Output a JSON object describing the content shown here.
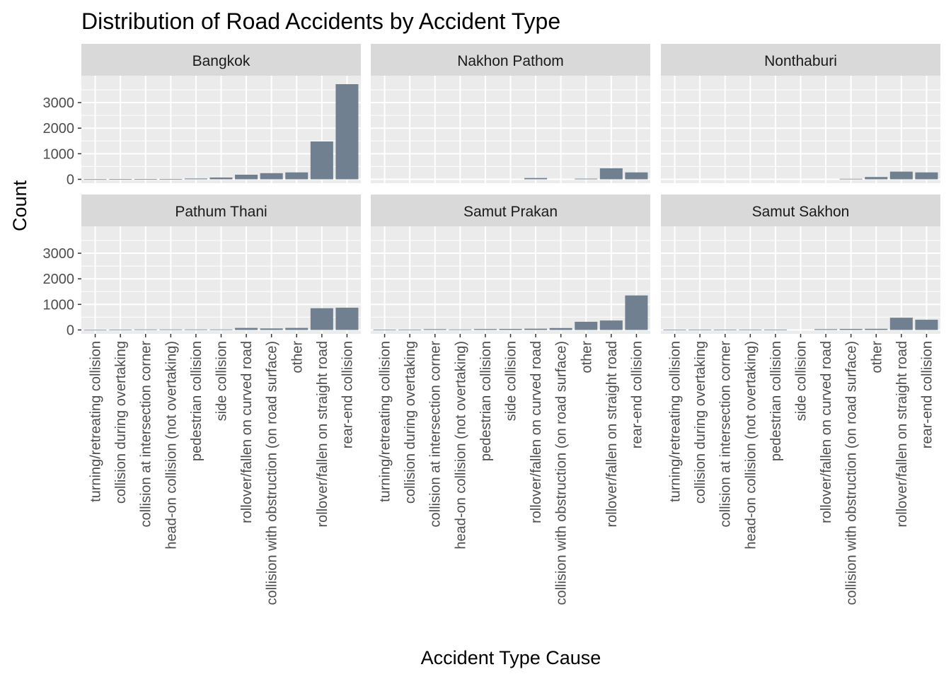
{
  "chart_data": {
    "type": "bar",
    "title": "Distribution of Road Accidents by Accident Type",
    "xlabel": "Accident Type Cause",
    "ylabel": "Count",
    "ylim": [
      0,
      3900
    ],
    "yticks": [
      0,
      1000,
      2000,
      3000
    ],
    "ytick_labels": [
      "0",
      "1000",
      "2000",
      "3000"
    ],
    "grid": true,
    "bar_color": "#708090",
    "panel_background": "#ebebeb",
    "strip_background": "#d9d9d9",
    "facet_layout": "2 rows x 3 columns",
    "categories": [
      "turning/retreating collision",
      "collision during overtaking",
      "collision at intersection corner",
      "head-on collision (not overtaking)",
      "pedestrian collision",
      "side collision",
      "rollover/fallen on curved road",
      "collision with obstruction (on road surface)",
      "other",
      "rollover/fallen on straight road",
      "rear-end collision"
    ],
    "panels": [
      {
        "name": "Bangkok",
        "values": [
          5,
          8,
          10,
          15,
          30,
          70,
          180,
          240,
          270,
          1480,
          3720
        ]
      },
      {
        "name": "Nakhon Pathom",
        "values": [
          0,
          0,
          0,
          0,
          0,
          0,
          50,
          0,
          25,
          430,
          270
        ]
      },
      {
        "name": "Nonthaburi",
        "values": [
          0,
          0,
          0,
          0,
          0,
          0,
          0,
          20,
          90,
          300,
          270
        ]
      },
      {
        "name": "Pathum Thani",
        "values": [
          5,
          15,
          20,
          20,
          20,
          20,
          80,
          60,
          80,
          850,
          870
        ]
      },
      {
        "name": "Samut Prakan",
        "values": [
          10,
          15,
          30,
          20,
          35,
          40,
          50,
          75,
          320,
          370,
          1350
        ]
      },
      {
        "name": "Samut Sakhon",
        "values": [
          10,
          15,
          15,
          15,
          15,
          0,
          30,
          40,
          45,
          480,
          400
        ]
      }
    ]
  }
}
